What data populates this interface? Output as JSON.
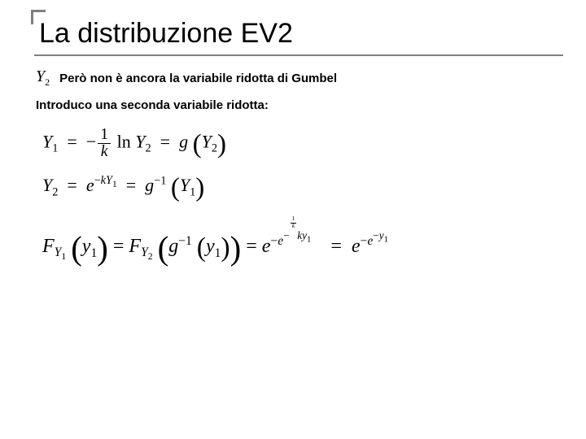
{
  "title": "La distribuzione EV2",
  "y2_symbol_var": "Y",
  "y2_symbol_sub": "2",
  "line1_text": "Però non è ancora la variabile ridotta di Gumbel",
  "line2_text": "Introduco una seconda variabile ridotta:",
  "eq1": {
    "lhs_var": "Y",
    "lhs_sub": "1",
    "minus": "−",
    "frac_num": "1",
    "frac_den_var": "k",
    "ln": "ln",
    "rhs1_var": "Y",
    "rhs1_sub": "2",
    "eq": "=",
    "g": "g",
    "arg_var": "Y",
    "arg_sub": "2"
  },
  "eq2": {
    "lhs_var": "Y",
    "lhs_sub": "2",
    "eq": "=",
    "e": "e",
    "exp_minus": "−",
    "exp_k": "k",
    "exp_Y": "Y",
    "exp_sub": "1",
    "g": "g",
    "g_sup": "−1",
    "arg_var": "Y",
    "arg_sub": "1"
  },
  "eq3": {
    "F": "F",
    "Fsub1_Y": "Y",
    "Fsub1_1": "1",
    "y": "y",
    "y_sub": "1",
    "eq": "=",
    "Fsub2_Y": "Y",
    "Fsub2_2": "2",
    "g": "g",
    "g_sup": "−1",
    "e": "e",
    "minus": "−",
    "frac_num": "1",
    "frac_den": "k",
    "k": "k"
  },
  "colors": {
    "text": "#000000",
    "rule": "#808080",
    "bg": "#ffffff"
  }
}
